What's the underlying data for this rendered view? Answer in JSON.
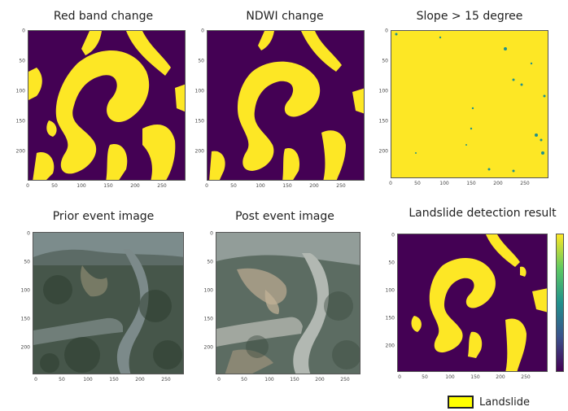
{
  "panels": [
    {
      "title": "Red band change",
      "kind": "binary"
    },
    {
      "title": "NDWI change",
      "kind": "binary"
    },
    {
      "title": "Slope > 15 degree",
      "kind": "slope"
    },
    {
      "title": "Prior event image",
      "kind": "photo"
    },
    {
      "title": "Post event image",
      "kind": "photo"
    },
    {
      "title": "Landslide detection result",
      "kind": "binary"
    }
  ],
  "x_ticks": [
    "0",
    "50",
    "100",
    "150",
    "200",
    "250"
  ],
  "y_ticks": [
    "0",
    "50",
    "100",
    "150",
    "200"
  ],
  "legend": {
    "label": "Landslide"
  },
  "colors": {
    "background_class": "#440154",
    "landslide_class": "#fde725",
    "legend_fill": "#ffff00"
  }
}
